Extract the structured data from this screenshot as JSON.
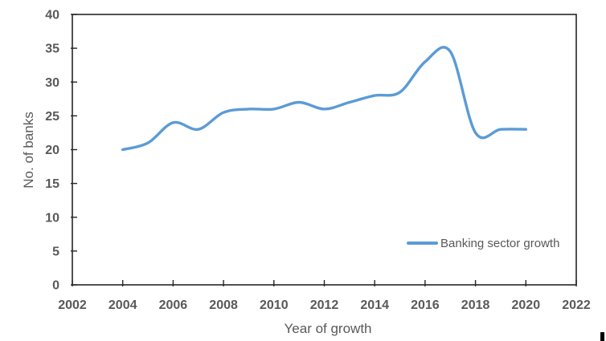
{
  "chart_data": {
    "type": "line",
    "title": "",
    "xlabel": "Year of growth",
    "ylabel": "No. of banks",
    "x": [
      2004,
      2005,
      2006,
      2007,
      2008,
      2009,
      2010,
      2011,
      2012,
      2013,
      2014,
      2015,
      2016,
      2017,
      2018,
      2019,
      2020
    ],
    "series": [
      {
        "name": "Banking sector growth",
        "color": "#5B9BD5",
        "smooth": true,
        "values": [
          20,
          21,
          24,
          23,
          25.5,
          26,
          26,
          27,
          26,
          27,
          28,
          28.5,
          33,
          34.5,
          22.5,
          23,
          23
        ]
      }
    ],
    "xlim": [
      2002,
      2022
    ],
    "ylim": [
      0,
      40
    ],
    "x_ticks": [
      2002,
      2004,
      2006,
      2008,
      2010,
      2012,
      2014,
      2016,
      2018,
      2020,
      2022
    ],
    "y_ticks": [
      0,
      5,
      10,
      15,
      20,
      25,
      30,
      35,
      40
    ],
    "grid": false,
    "legend_position": "inside-bottom-right",
    "tick_style": "cross",
    "axis_color": "#262626",
    "tick_label_color": "#595959"
  }
}
